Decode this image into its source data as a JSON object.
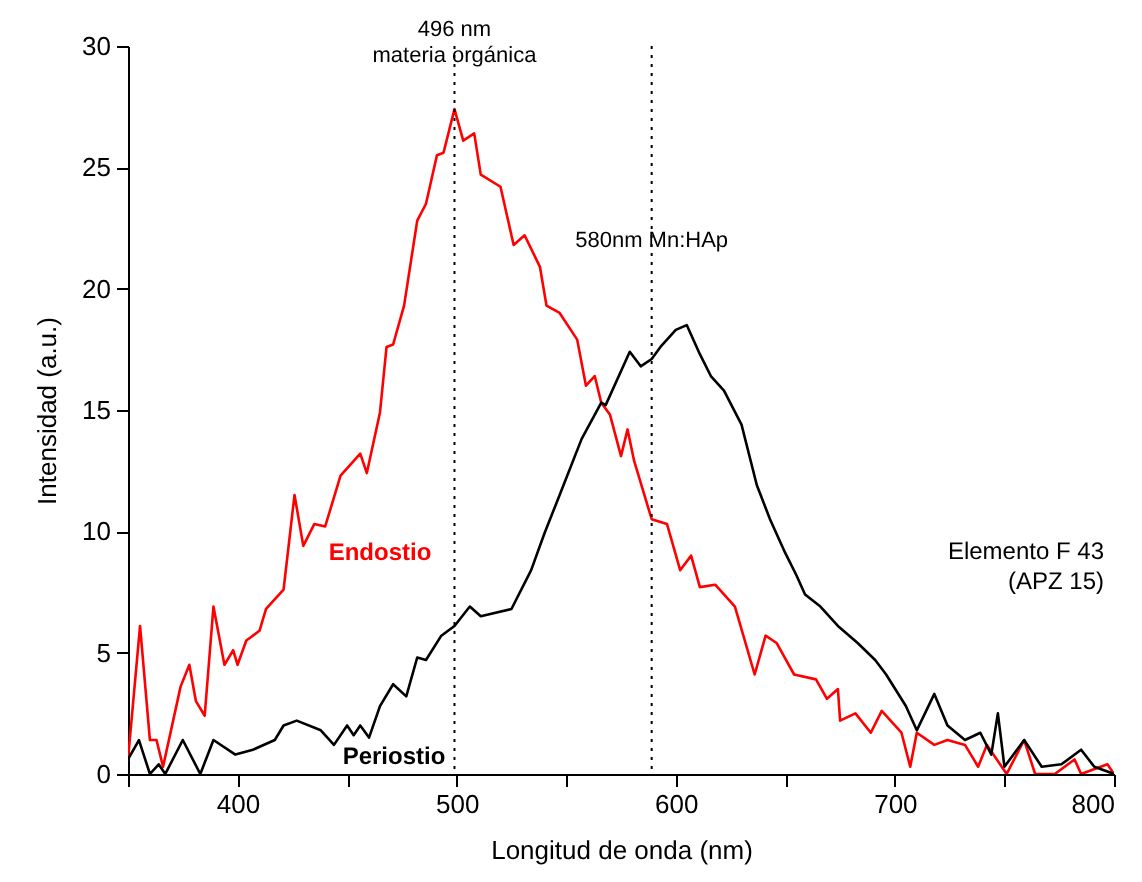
{
  "chart_data": {
    "type": "line",
    "xlabel": "Longitud de onda (nm)",
    "ylabel": "Intensidad (a.u.)",
    "xlim": [
      350,
      800
    ],
    "ylim": [
      0,
      30
    ],
    "xticks": [
      {
        "value": 350,
        "label": null
      },
      400,
      {
        "value": 450,
        "label": null
      },
      500,
      {
        "value": 550,
        "label": null
      },
      600,
      {
        "value": 650,
        "label": null
      },
      700,
      {
        "value": 750,
        "label": null
      },
      800
    ],
    "yticks": [
      0,
      5,
      10,
      15,
      20,
      25,
      30
    ],
    "grid": false,
    "line_style": "solid",
    "marker": "none",
    "series": [
      {
        "name": "Endostio",
        "color": "#ff0000",
        "x": [
          350,
          355.5,
          360,
          363,
          366,
          374,
          378,
          381,
          385,
          389,
          394,
          398,
          400,
          404,
          410,
          413,
          421,
          426,
          430,
          435,
          440,
          447,
          451,
          456,
          459,
          465,
          468,
          471,
          476,
          482,
          486,
          491,
          494,
          499,
          503,
          508,
          511,
          520,
          526,
          531,
          538,
          541,
          547,
          555,
          559,
          563,
          566,
          570,
          575,
          578,
          581,
          589,
          596,
          602,
          607,
          611,
          618,
          627,
          636,
          641,
          646,
          654,
          664,
          669,
          674,
          675,
          682,
          689,
          694,
          703,
          707,
          710,
          718,
          724,
          732,
          738,
          742,
          751,
          759,
          764,
          773,
          782,
          785,
          797,
          800
        ],
        "values": [
          0.6,
          6.1,
          1.4,
          1.4,
          0.3,
          3.6,
          4.5,
          3.0,
          2.4,
          6.9,
          4.5,
          5.1,
          4.5,
          5.5,
          5.9,
          6.8,
          7.6,
          11.5,
          9.4,
          10.3,
          10.2,
          12.3,
          12.7,
          13.2,
          12.4,
          14.9,
          17.6,
          17.7,
          19.3,
          22.8,
          23.5,
          25.5,
          25.6,
          27.4,
          26.1,
          26.4,
          24.7,
          24.2,
          21.8,
          22.2,
          20.9,
          19.3,
          19.0,
          17.9,
          16.0,
          16.4,
          15.3,
          14.8,
          13.1,
          14.2,
          12.9,
          10.5,
          10.3,
          8.4,
          9.0,
          7.7,
          7.8,
          6.9,
          4.1,
          5.7,
          5.4,
          4.1,
          3.9,
          3.1,
          3.5,
          2.2,
          2.5,
          1.7,
          2.6,
          1.7,
          0.3,
          1.7,
          1.2,
          1.4,
          1.2,
          0.3,
          1.2,
          0,
          1.4,
          0,
          0,
          0.6,
          0,
          0.4,
          0
        ]
      },
      {
        "name": "Periostio",
        "color": "#000000",
        "x": [
          350,
          355,
          360,
          364,
          367,
          375,
          383,
          389,
          399,
          407,
          417,
          421,
          427,
          438,
          444,
          450,
          453,
          456,
          460,
          465,
          471,
          477,
          482,
          486,
          493,
          499,
          506,
          511,
          525,
          534,
          540,
          547,
          557,
          566,
          568,
          579,
          584,
          589,
          593,
          600,
          605,
          611,
          616,
          622,
          630,
          637,
          643,
          650,
          655,
          659,
          666,
          674,
          683,
          691,
          696,
          705,
          710,
          718,
          724,
          732,
          739,
          744,
          747,
          750,
          759,
          767,
          776,
          785,
          791,
          800
        ],
        "values": [
          0.6,
          1.4,
          0,
          0.4,
          0,
          1.4,
          0,
          1.4,
          0.8,
          1.0,
          1.4,
          2.0,
          2.2,
          1.8,
          1.2,
          2.0,
          1.6,
          2.0,
          1.5,
          2.8,
          3.7,
          3.2,
          4.8,
          4.7,
          5.7,
          6.1,
          6.9,
          6.5,
          6.8,
          8.4,
          9.9,
          11.5,
          13.8,
          15.3,
          15.2,
          17.4,
          16.8,
          17.1,
          17.6,
          18.3,
          18.5,
          17.3,
          16.4,
          15.8,
          14.4,
          11.9,
          10.5,
          9.1,
          8.2,
          7.4,
          6.9,
          6.1,
          5.4,
          4.7,
          4.1,
          2.8,
          1.8,
          3.3,
          2.0,
          1.4,
          1.7,
          0.8,
          2.5,
          0.3,
          1.4,
          0.3,
          0.4,
          1.0,
          0.3,
          0
        ]
      }
    ],
    "ref_lines": [
      {
        "axis": "x",
        "value": 499,
        "line_style": "dotted",
        "color": "#000000"
      },
      {
        "axis": "x",
        "value": 589,
        "line_style": "dotted",
        "color": "#000000"
      }
    ],
    "annotations": [
      {
        "text": "496 nm\nmateria orgánica",
        "x": 499,
        "y": 30
      },
      {
        "text": "580nm Mn:HAp",
        "x": 589,
        "y": 21.3
      },
      "Elemento F 43\n(APZ 15)"
    ]
  }
}
